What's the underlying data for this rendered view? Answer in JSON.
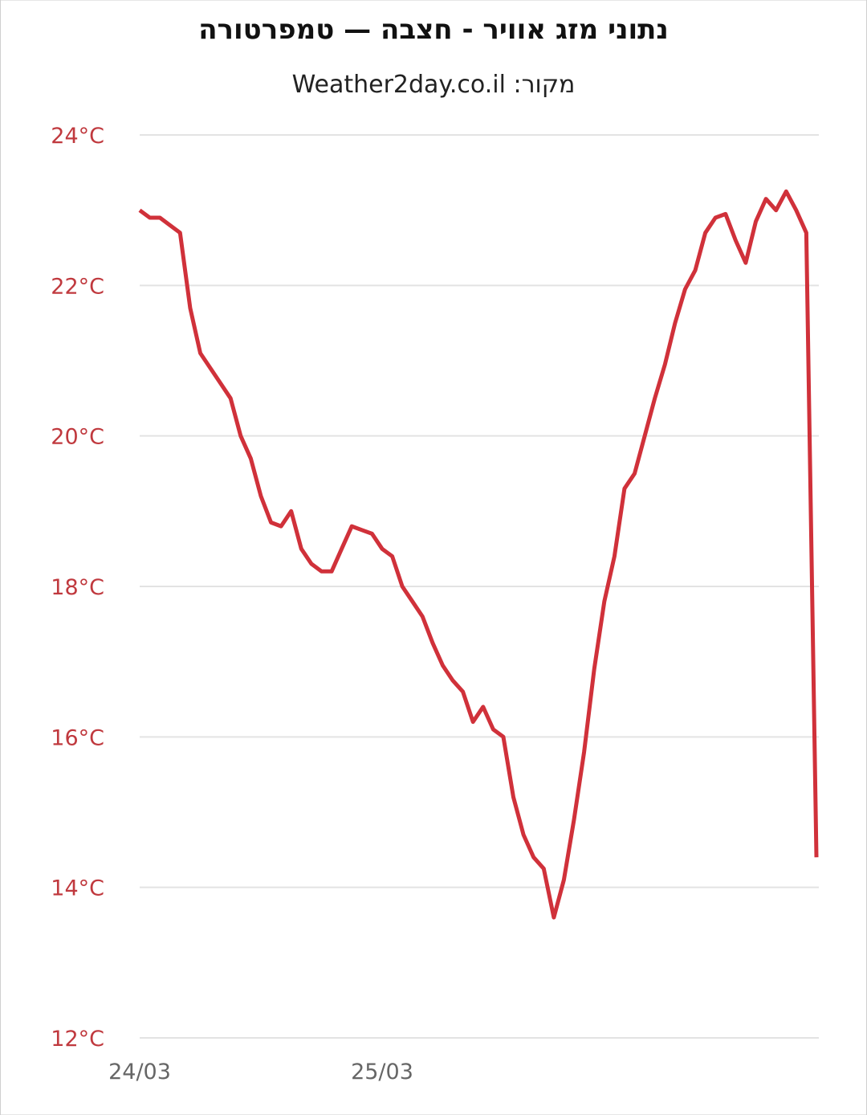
{
  "chart_data": {
    "type": "line",
    "title": "נתוני מזג אוויר - חצבה — טמפרטורה",
    "subtitle": "מקור: Weather2day.co.il",
    "categories": [
      "24/03",
      null,
      null,
      null,
      null,
      null,
      null,
      null,
      null,
      null,
      null,
      null,
      null,
      null,
      null,
      null,
      null,
      null,
      null,
      null,
      null,
      null,
      null,
      null,
      "25/03",
      null,
      null,
      null,
      null,
      null,
      null,
      null,
      null,
      null,
      null,
      null,
      null,
      null,
      null,
      null,
      null,
      null,
      null,
      null,
      null,
      null,
      null,
      null,
      null,
      null,
      null,
      null,
      null,
      null,
      null,
      null,
      null,
      null,
      null,
      null,
      null,
      null,
      null,
      null,
      null,
      null,
      null,
      null
    ],
    "series": [
      {
        "name": "טמפרטורה",
        "color": "#d0313a",
        "values": [
          23.0,
          22.9,
          22.9,
          22.8,
          22.7,
          21.7,
          21.1,
          20.9,
          20.7,
          20.5,
          20.0,
          19.7,
          19.2,
          18.85,
          18.8,
          19.0,
          18.5,
          18.3,
          18.2,
          18.2,
          18.5,
          18.8,
          18.75,
          18.7,
          18.5,
          18.4,
          18.0,
          17.8,
          17.6,
          17.25,
          16.95,
          16.75,
          16.6,
          16.2,
          16.4,
          16.1,
          16.0,
          15.2,
          14.7,
          14.4,
          14.25,
          13.6,
          14.1,
          14.9,
          15.8,
          16.9,
          17.8,
          18.4,
          19.3,
          19.5,
          20.0,
          20.5,
          20.95,
          21.5,
          21.95,
          22.2,
          22.7,
          22.9,
          22.95,
          22.6,
          22.3,
          22.85,
          23.15,
          23.0,
          23.25,
          23.0,
          22.7,
          14.4
        ]
      }
    ],
    "ylim": [
      12,
      24
    ],
    "yticks": [
      {
        "value": 12,
        "label": "12°C"
      },
      {
        "value": 14,
        "label": "14°C"
      },
      {
        "value": 16,
        "label": "16°C"
      },
      {
        "value": 18,
        "label": "18°C"
      },
      {
        "value": 20,
        "label": "20°C"
      },
      {
        "value": 22,
        "label": "22°C"
      },
      {
        "value": 24,
        "label": "24°C"
      }
    ],
    "grid": true
  }
}
